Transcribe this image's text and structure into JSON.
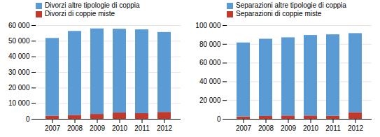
{
  "chart_data": [
    {
      "type": "bar",
      "stacked": true,
      "grid": true,
      "legend": "upper left",
      "categories": [
        "2007",
        "2008",
        "2009",
        "2010",
        "2011",
        "2012"
      ],
      "series": [
        {
          "name": "Divorzi di coppie miste",
          "color": "#C0392B",
          "values": [
            2000,
            2500,
            3100,
            4000,
            3600,
            4400
          ]
        },
        {
          "name": "Divorzi altre tipologie di coppia",
          "color": "#5B9BD5",
          "values": [
            49800,
            53800,
            54800,
            53700,
            53700,
            51200
          ]
        }
      ],
      "ylim": [
        0,
        60000
      ],
      "yticks": [
        0,
        {
          "value": 10000,
          "label": "10 000"
        },
        {
          "value": 20000,
          "label": "20 000"
        },
        {
          "value": 30000,
          "label": "30 000"
        },
        {
          "value": 40000,
          "label": "40 000"
        },
        {
          "value": 50000,
          "label": "50 000"
        },
        {
          "value": 60000,
          "label": "60 000"
        }
      ]
    },
    {
      "type": "bar",
      "stacked": true,
      "grid": true,
      "legend": "upper left",
      "categories": [
        "2007",
        "2008",
        "2009",
        "2010",
        "2011",
        "2012"
      ],
      "series": [
        {
          "name": "Separazioni di coppie miste",
          "color": "#C0392B",
          "values": [
            2500,
            3000,
            3500,
            3500,
            3200,
            7000
          ]
        },
        {
          "name": "Separazioni altre tipologie di coppia",
          "color": "#5B9BD5",
          "values": [
            79000,
            82500,
            83500,
            86000,
            87000,
            84500
          ]
        }
      ],
      "ylim": [
        0,
        100000
      ],
      "yticks": [
        0,
        {
          "value": 20000,
          "label": "20 000"
        },
        {
          "value": 40000,
          "label": "40 000"
        },
        {
          "value": 60000,
          "label": "60 000"
        },
        {
          "value": 80000,
          "label": "80 000"
        },
        {
          "value": 100000,
          "label": "100 000"
        }
      ]
    }
  ]
}
